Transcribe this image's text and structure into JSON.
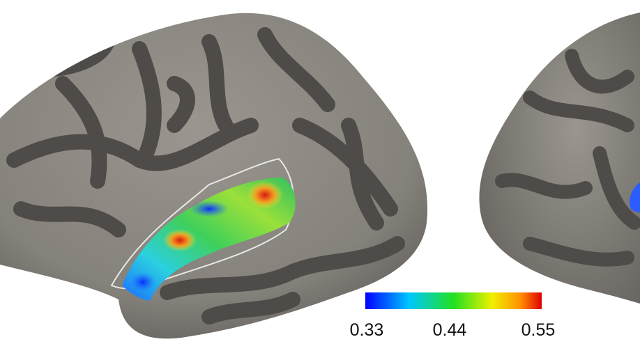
{
  "colorbar": {
    "ticks": [
      "0.33",
      "0.44",
      "0.55"
    ]
  }
}
